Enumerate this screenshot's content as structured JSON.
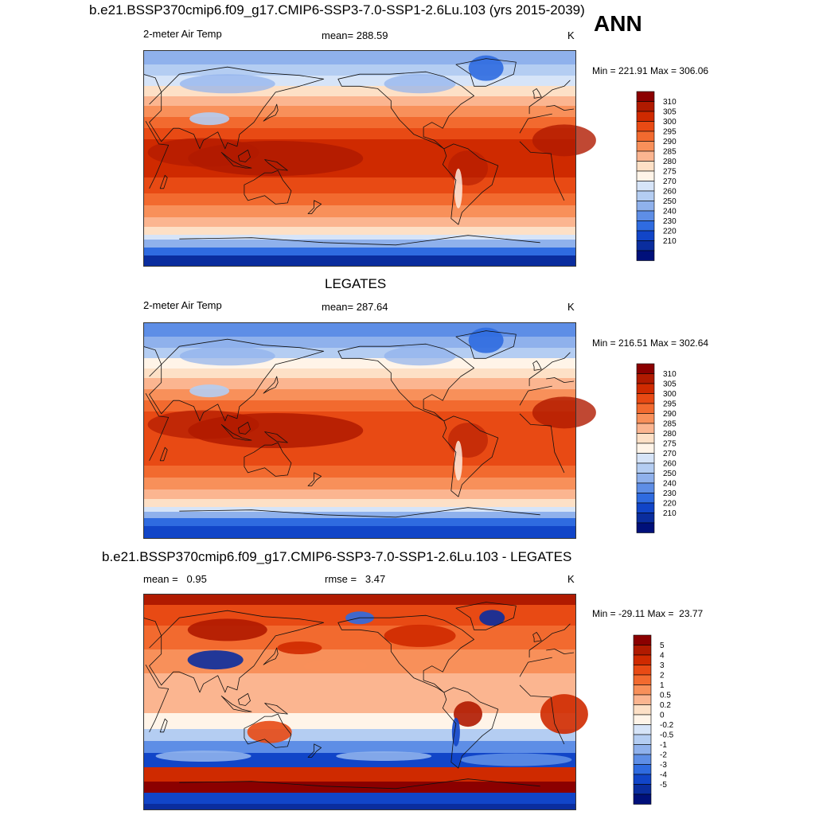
{
  "annotation": "ANN",
  "panels": [
    {
      "title": "b.e21.BSSP370cmip6.f09_g17.CMIP6-SSP3-7.0-SSP1-2.6Lu.103 (yrs 2015-2039)",
      "left_label": "2-meter Air Temp",
      "center_label": "mean= 288.59",
      "units": "K",
      "stats": "Min = 221.91 Max = 306.06",
      "colorbar": {
        "labels": [
          "310",
          "305",
          "300",
          "295",
          "290",
          "285",
          "280",
          "275",
          "270",
          "260",
          "250",
          "240",
          "230",
          "220",
          "210"
        ],
        "colors": [
          "#8b0000",
          "#b01a00",
          "#cf2a00",
          "#e84a14",
          "#f26a2f",
          "#f8905a",
          "#fbb590",
          "#fde0c6",
          "#fff4e8",
          "#d6e4f8",
          "#b4cdf2",
          "#8fb1ec",
          "#5e8ee6",
          "#2f6be0",
          "#1145c8",
          "#0a2d9e",
          "#00107a"
        ]
      },
      "map": "model"
    },
    {
      "title": "LEGATES",
      "left_label": "2-meter Air Temp",
      "center_label": "mean= 287.64",
      "units": "K",
      "stats": "Min = 216.51 Max = 302.64",
      "colorbar": {
        "labels": [
          "310",
          "305",
          "300",
          "295",
          "290",
          "285",
          "280",
          "275",
          "270",
          "260",
          "250",
          "240",
          "230",
          "220",
          "210"
        ],
        "colors": [
          "#8b0000",
          "#b01a00",
          "#cf2a00",
          "#e84a14",
          "#f26a2f",
          "#f8905a",
          "#fbb590",
          "#fde0c6",
          "#fff4e8",
          "#d6e4f8",
          "#b4cdf2",
          "#8fb1ec",
          "#5e8ee6",
          "#2f6be0",
          "#1145c8",
          "#0a2d9e",
          "#00107a"
        ]
      },
      "map": "obs"
    },
    {
      "title": "b.e21.BSSP370cmip6.f09_g17.CMIP6-SSP3-7.0-SSP1-2.6Lu.103 - LEGATES",
      "left_label": "mean =   0.95",
      "center_label": "rmse =   3.47",
      "units": "K",
      "stats": "Min = -29.11 Max =  23.77",
      "colorbar": {
        "labels": [
          "5",
          "4",
          "3",
          "2",
          "1",
          "0.5",
          "0.2",
          "0",
          "-0.2",
          "-0.5",
          "-1",
          "-2",
          "-3",
          "-4",
          "-5"
        ],
        "colors": [
          "#8b0000",
          "#b01a00",
          "#cf2a00",
          "#e84a14",
          "#f26a2f",
          "#f8905a",
          "#fbb590",
          "#fde0c6",
          "#fff4e8",
          "#d6e4f8",
          "#b4cdf2",
          "#8fb1ec",
          "#5e8ee6",
          "#2f6be0",
          "#1145c8",
          "#0a2d9e",
          "#00107a"
        ]
      },
      "map": "diff"
    }
  ]
}
